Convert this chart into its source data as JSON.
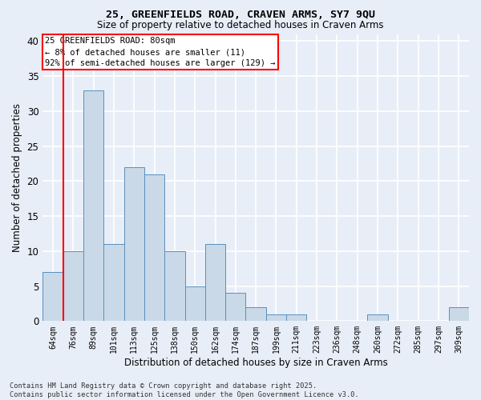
{
  "title_line1": "25, GREENFIELDS ROAD, CRAVEN ARMS, SY7 9QU",
  "title_line2": "Size of property relative to detached houses in Craven Arms",
  "xlabel": "Distribution of detached houses by size in Craven Arms",
  "ylabel": "Number of detached properties",
  "categories": [
    "64sqm",
    "76sqm",
    "89sqm",
    "101sqm",
    "113sqm",
    "125sqm",
    "138sqm",
    "150sqm",
    "162sqm",
    "174sqm",
    "187sqm",
    "199sqm",
    "211sqm",
    "223sqm",
    "236sqm",
    "248sqm",
    "260sqm",
    "272sqm",
    "285sqm",
    "297sqm",
    "309sqm"
  ],
  "values": [
    7,
    10,
    33,
    11,
    22,
    21,
    10,
    5,
    11,
    4,
    2,
    1,
    1,
    0,
    0,
    0,
    1,
    0,
    0,
    0,
    2
  ],
  "bar_color": "#c9d9e8",
  "bar_edge_color": "#5a8fbb",
  "red_line_index": 1,
  "annotation_title": "25 GREENFIELDS ROAD: 80sqm",
  "annotation_line2": "← 8% of detached houses are smaller (11)",
  "annotation_line3": "92% of semi-detached houses are larger (129) →",
  "ylim": [
    0,
    41
  ],
  "yticks": [
    0,
    5,
    10,
    15,
    20,
    25,
    30,
    35,
    40
  ],
  "background_color": "#e8eef8",
  "grid_color": "#ffffff",
  "footer": "Contains HM Land Registry data © Crown copyright and database right 2025.\nContains public sector information licensed under the Open Government Licence v3.0."
}
